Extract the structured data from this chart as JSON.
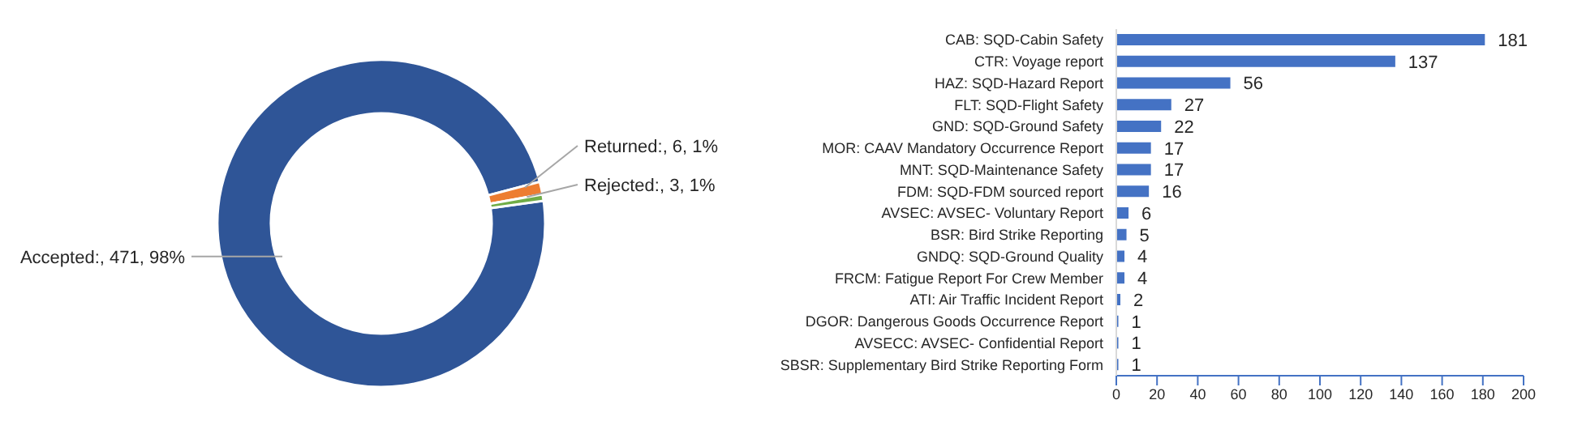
{
  "chart_data": [
    {
      "type": "donut",
      "categories": [
        "Accepted",
        "Returned",
        "Rejected"
      ],
      "values": [
        471,
        6,
        3
      ],
      "colors": [
        "#2f5597",
        "#ed7d31",
        "#70ad47"
      ],
      "value_labels": [
        ":, 471, 98%",
        ":, 6, 1%",
        ":, 3, 1%"
      ]
    },
    {
      "type": "bar",
      "orientation": "horizontal",
      "categories": [
        "CAB: SQD-Cabin Safety",
        "CTR: Voyage report",
        "HAZ: SQD-Hazard Report",
        "FLT: SQD-Flight Safety",
        "GND: SQD-Ground Safety",
        "MOR: CAAV Mandatory Occurrence Report",
        "MNT: SQD-Maintenance Safety",
        "FDM: SQD-FDM sourced report",
        "AVSEC: AVSEC- Voluntary Report",
        "BSR: Bird Strike Reporting",
        "GNDQ: SQD-Ground Quality",
        "FRCM: Fatigue Report For Crew Member",
        "ATI: Air Traffic Incident Report",
        "DGOR: Dangerous Goods Occurrence Report",
        "AVSECC: AVSEC- Confidential Report",
        "SBSR: Supplementary Bird Strike Reporting Form"
      ],
      "values": [
        181,
        137,
        56,
        27,
        22,
        17,
        17,
        16,
        6,
        5,
        4,
        4,
        2,
        1,
        1,
        1
      ],
      "color": "#4472c4",
      "xlim": [
        0,
        200
      ],
      "xticks": [
        0,
        20,
        40,
        60,
        80,
        100,
        120,
        140,
        160,
        180,
        200
      ],
      "data_labels": true
    }
  ]
}
